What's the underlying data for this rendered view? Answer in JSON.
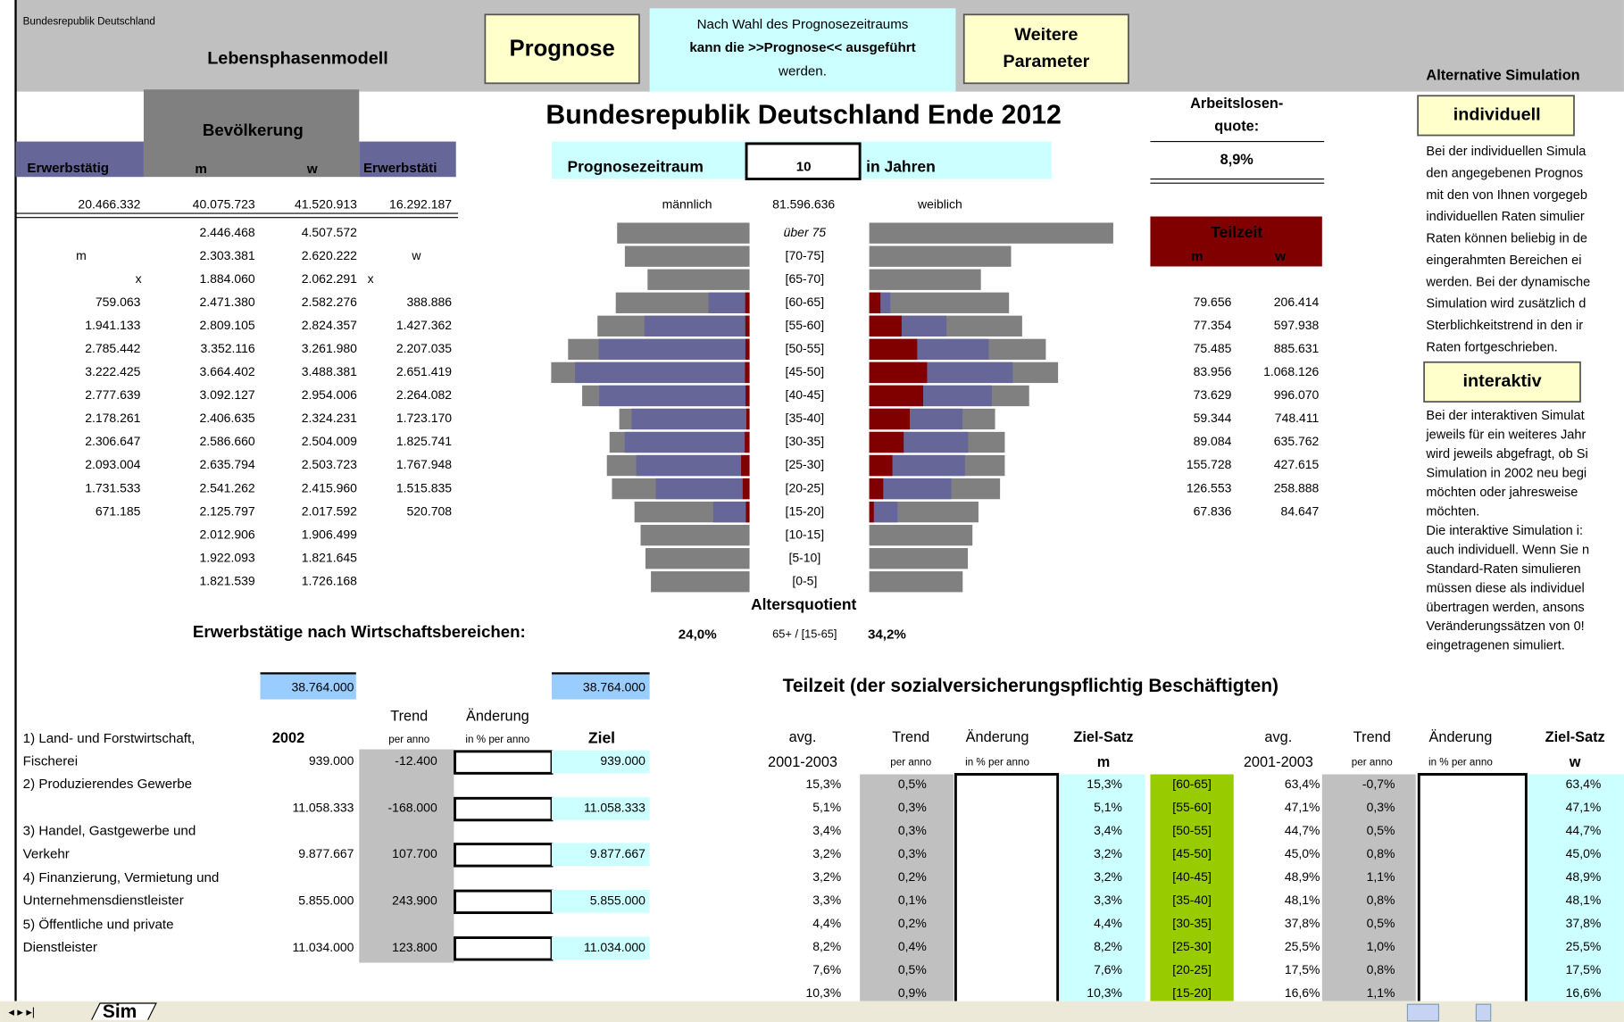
{
  "header": {
    "region": "Bundesrepublik Deutschland",
    "model": "Lebensphasenmodell",
    "prognose_button": "Prognose",
    "note": [
      "Nach Wahl des Prognosezeitraums",
      "kann die >>Prognose<< ausgeführt",
      "werden."
    ],
    "parameter_button": [
      "Weitere",
      "Parameter"
    ],
    "alternative": "Alternative Simulation"
  },
  "title": "Bundesrepublik Deutschland Ende 2012",
  "forecast": {
    "label": "Prognosezeitraum",
    "value": "10",
    "unit": "in Jahren"
  },
  "unemployment": {
    "label": [
      "Arbeitslosen-",
      "quote:"
    ],
    "value": "8,9%"
  },
  "population_table": {
    "header": {
      "population": "Bevölkerung",
      "employed_m": "Erwerbstätig",
      "m": "m",
      "w": "w",
      "employed_w": "Erwerbstäti"
    },
    "totals": [
      "20.466.332",
      "40.075.723",
      "41.520.913",
      "16.292.187"
    ],
    "rows": [
      [
        "",
        "2.446.468",
        "4.507.572",
        ""
      ],
      [
        "",
        "2.303.381",
        "2.620.222",
        ""
      ],
      [
        "",
        "1.884.060",
        "2.062.291",
        ""
      ],
      [
        "759.063",
        "2.471.380",
        "2.582.276",
        "388.886"
      ],
      [
        "1.941.133",
        "2.809.105",
        "2.824.357",
        "1.427.362"
      ],
      [
        "2.785.442",
        "3.352.116",
        "3.261.980",
        "2.207.035"
      ],
      [
        "3.222.425",
        "3.664.402",
        "3.488.381",
        "2.651.419"
      ],
      [
        "2.777.639",
        "3.092.127",
        "2.954.006",
        "2.264.082"
      ],
      [
        "2.178.261",
        "2.406.635",
        "2.324.231",
        "1.723.170"
      ],
      [
        "2.306.647",
        "2.586.660",
        "2.504.009",
        "1.825.741"
      ],
      [
        "2.093.004",
        "2.635.794",
        "2.503.723",
        "1.767.948"
      ],
      [
        "1.731.533",
        "2.541.262",
        "2.415.960",
        "1.515.835"
      ],
      [
        "671.185",
        "2.125.797",
        "2.017.592",
        "520.708"
      ],
      [
        "",
        "2.012.906",
        "1.906.499",
        ""
      ],
      [
        "",
        "1.922.093",
        "1.821.645",
        ""
      ],
      [
        "",
        "1.821.539",
        "1.726.168",
        ""
      ]
    ],
    "markers": [
      "m",
      "w",
      "x",
      "x"
    ]
  },
  "pyramid": {
    "male": "männlich",
    "total": "81.596.636",
    "female": "weiblich",
    "age_groups": [
      "über 75",
      "[70-75]",
      "[65-70]",
      "[60-65]",
      "[55-60]",
      "[50-55]",
      "[45-50]",
      "[40-45]",
      "[35-40]",
      "[30-35]",
      "[25-30]",
      "[20-25]",
      "[15-20]",
      "[10-15]",
      "[5-10]",
      "[0-5]"
    ],
    "population_m": [
      2446468,
      2303381,
      1884060,
      2471380,
      2809105,
      3352116,
      3664402,
      3092127,
      2406635,
      2586660,
      2635794,
      2541262,
      2125797,
      2012906,
      1922093,
      1821539
    ],
    "population_w": [
      4507572,
      2620222,
      2062291,
      2582276,
      2824357,
      3261980,
      3488381,
      2954006,
      2324231,
      2504009,
      2503723,
      2415960,
      2017592,
      1906499,
      1821645,
      1726168
    ],
    "employed_m": [
      null,
      null,
      null,
      759063,
      1941133,
      2785442,
      3222425,
      2777639,
      2178261,
      2306647,
      2093004,
      1731533,
      671185,
      null,
      null,
      null
    ],
    "employed_w": [
      null,
      null,
      null,
      388886,
      1427362,
      2207035,
      2651419,
      2264082,
      1723170,
      1825741,
      1767948,
      1515835,
      520708,
      null,
      null,
      null
    ],
    "parttime_m": [
      null,
      null,
      null,
      79656,
      77354,
      75485,
      83956,
      73629,
      59344,
      89084,
      155728,
      126553,
      67836,
      null,
      null,
      null
    ],
    "parttime_w": [
      null,
      null,
      null,
      206414,
      597938,
      885631,
      1068126,
      996070,
      748411,
      635762,
      427615,
      258888,
      84647,
      null,
      null,
      null
    ],
    "ratio_label": "Altersquotient",
    "ratio_m": "24,0%",
    "ratio_def": "65+ / [15-65]",
    "ratio_w": "34,2%"
  },
  "parttime_table": {
    "label": "Teilzeit",
    "m": "m",
    "w": "w",
    "rows": [
      [
        "79.656",
        "206.414"
      ],
      [
        "77.354",
        "597.938"
      ],
      [
        "75.485",
        "885.631"
      ],
      [
        "83.956",
        "1.068.126"
      ],
      [
        "73.629",
        "996.070"
      ],
      [
        "59.344",
        "748.411"
      ],
      [
        "89.084",
        "635.762"
      ],
      [
        "155.728",
        "427.615"
      ],
      [
        "126.553",
        "258.888"
      ],
      [
        "67.836",
        "84.647"
      ]
    ]
  },
  "simulation": {
    "individual_button": "individuell",
    "individual_text": [
      "Bei der individuellen Simula",
      "den angegebenen Prognos",
      "mit den von Ihnen vorgegeb",
      "individuellen Raten simulier",
      "Raten können beliebig in de",
      "eingerahmten Bereichen ei",
      "werden. Bei der dynamische",
      "Simulation wird zusätzlich d",
      "Sterblichkeitstrend in den ir",
      "Raten fortgeschrieben."
    ],
    "interactive_button": "interaktiv",
    "interactive_text": [
      "Bei der interaktiven Simulat",
      "jeweils für ein weiteres Jahr",
      "wird jeweils abgefragt, ob Si",
      "Simulation in 2002 neu begi",
      "möchten oder jahresweise",
      "möchten.",
      "Die interaktive Simulation i:",
      "auch individuell. Wenn Sie n",
      "Standard-Raten simulieren",
      "müssen diese als individuel",
      "übertragen werden, ansons",
      "Veränderungssätzen von 0!",
      "eingetragenen simuliert."
    ]
  },
  "sectors": {
    "title": "Erwerbstätige nach Wirtschaftsbereichen:",
    "total_2002": "38.764.000",
    "total_target": "38.764.000",
    "columns": {
      "year": "2002",
      "trend": [
        "Trend",
        "per anno"
      ],
      "change": [
        "Änderung",
        "in % per anno"
      ],
      "target": "Ziel"
    },
    "rows": [
      {
        "name": [
          "1) Land- und Forstwirtschaft,",
          "Fischerei"
        ],
        "value": "939.000",
        "trend": "-12.400",
        "target": "939.000"
      },
      {
        "name": [
          "2) Produzierendes Gewerbe"
        ],
        "value": "11.058.333",
        "trend": "-168.000",
        "target": "11.058.333"
      },
      {
        "name": [
          "3) Handel, Gastgewerbe und",
          "Verkehr"
        ],
        "value": "9.877.667",
        "trend": "107.700",
        "target": "9.877.667"
      },
      {
        "name": [
          "4) Finanzierung, Vermietung und",
          "Unternehmensdienstleister"
        ],
        "value": "5.855.000",
        "trend": "243.900",
        "target": "5.855.000"
      },
      {
        "name": [
          "5) Öffentliche und private",
          "Dienstleister"
        ],
        "value": "11.034.000",
        "trend": "123.800",
        "target": "11.034.000"
      }
    ]
  },
  "parttime_rates": {
    "title": "Teilzeit (der sozialversicherungspflichtig Beschäftigten)",
    "columns": [
      [
        "avg.",
        "2001-2003"
      ],
      [
        "Trend",
        "per anno"
      ],
      [
        "Änderung",
        "in % per anno"
      ],
      [
        "Ziel-Satz",
        "m"
      ],
      [
        "avg.",
        "2001-2003"
      ],
      [
        "Trend",
        "per anno"
      ],
      [
        "Änderung",
        "in % per anno"
      ],
      [
        "Ziel-Satz",
        "w"
      ]
    ],
    "rows": [
      [
        "15,3%",
        "0,5%",
        "15,3%",
        "[60-65]",
        "63,4%",
        "-0,7%",
        "63,4%"
      ],
      [
        "5,1%",
        "0,3%",
        "5,1%",
        "[55-60]",
        "47,1%",
        "0,3%",
        "47,1%"
      ],
      [
        "3,4%",
        "0,3%",
        "3,4%",
        "[50-55]",
        "44,7%",
        "0,5%",
        "44,7%"
      ],
      [
        "3,2%",
        "0,3%",
        "3,2%",
        "[45-50]",
        "45,0%",
        "0,8%",
        "45,0%"
      ],
      [
        "3,2%",
        "0,2%",
        "3,2%",
        "[40-45]",
        "48,9%",
        "1,1%",
        "48,9%"
      ],
      [
        "3,3%",
        "0,1%",
        "3,3%",
        "[35-40]",
        "48,1%",
        "0,8%",
        "48,1%"
      ],
      [
        "4,4%",
        "0,2%",
        "4,4%",
        "[30-35]",
        "37,8%",
        "0,5%",
        "37,8%"
      ],
      [
        "8,2%",
        "0,4%",
        "8,2%",
        "[25-30]",
        "25,5%",
        "1,0%",
        "25,5%"
      ],
      [
        "7,6%",
        "0,5%",
        "7,6%",
        "[20-25]",
        "17,5%",
        "0,8%",
        "17,5%"
      ],
      [
        "10,3%",
        "0,9%",
        "10,3%",
        "[15-20]",
        "16,6%",
        "1,1%",
        "16,6%"
      ]
    ]
  },
  "sheet_tab": "Sim"
}
